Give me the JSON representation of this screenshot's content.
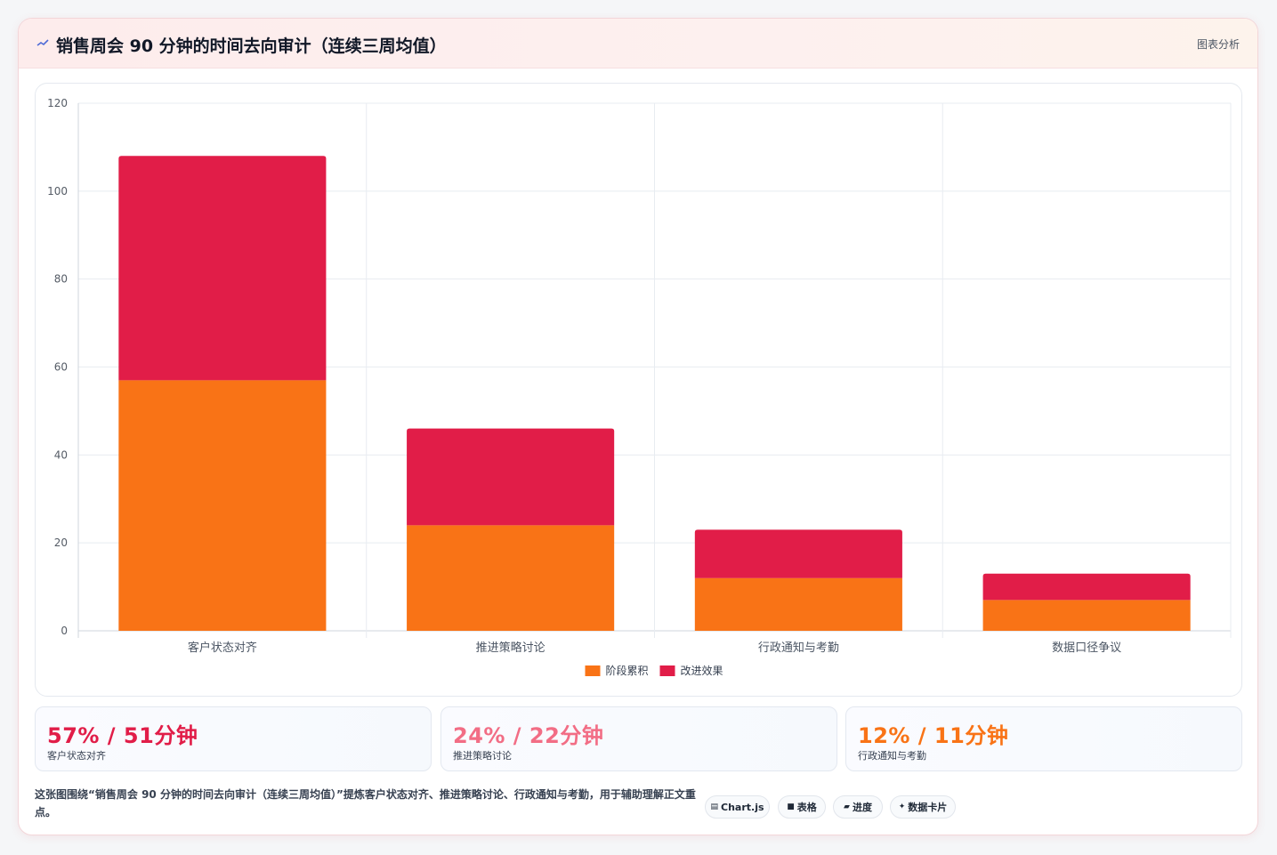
{
  "header": {
    "icon": "trend-line-icon",
    "title": "销售周会 90 分钟的时间去向审计（连续三周均值）",
    "link_label": "图表分析"
  },
  "chart_data": {
    "type": "bar",
    "stacked": true,
    "categories": [
      "客户状态对齐",
      "推进策略讨论",
      "行政通知与考勤",
      "数据口径争议"
    ],
    "series": [
      {
        "name": "阶段累积",
        "values": [
          57,
          24,
          12,
          7
        ],
        "color": "#f97316"
      },
      {
        "name": "改进效果",
        "values": [
          51,
          22,
          11,
          6
        ],
        "color": "#e11d48"
      }
    ],
    "ylim": [
      0,
      120
    ],
    "yticks": [
      0,
      20,
      40,
      60,
      80,
      100,
      120
    ],
    "grid": true,
    "legend_position": "bottom-center"
  },
  "stats": [
    {
      "value": "57% / 51分钟",
      "label": "客户状态对齐",
      "color": "#e11d48"
    },
    {
      "value": "24% / 22分钟",
      "label": "推进策略讨论",
      "color": "#f26d85"
    },
    {
      "value": "12% / 11分钟",
      "label": "行政通知与考勤",
      "color": "#f97316"
    }
  ],
  "footnote": "这张图围绕“销售周会 90 分钟的时间去向审计（连续三周均值）”提炼客户状态对齐、推进策略讨论、行政通知与考勤，用于辅助理解正文重点。",
  "tags": [
    {
      "icon": "chart-icon",
      "glyph": "▤",
      "label": "Chart.js"
    },
    {
      "icon": "table-icon",
      "glyph": "■",
      "label": "表格"
    },
    {
      "icon": "progress-icon",
      "glyph": "▰",
      "label": "进度"
    },
    {
      "icon": "sparkle-icon",
      "glyph": "✦",
      "label": "数据卡片"
    }
  ]
}
